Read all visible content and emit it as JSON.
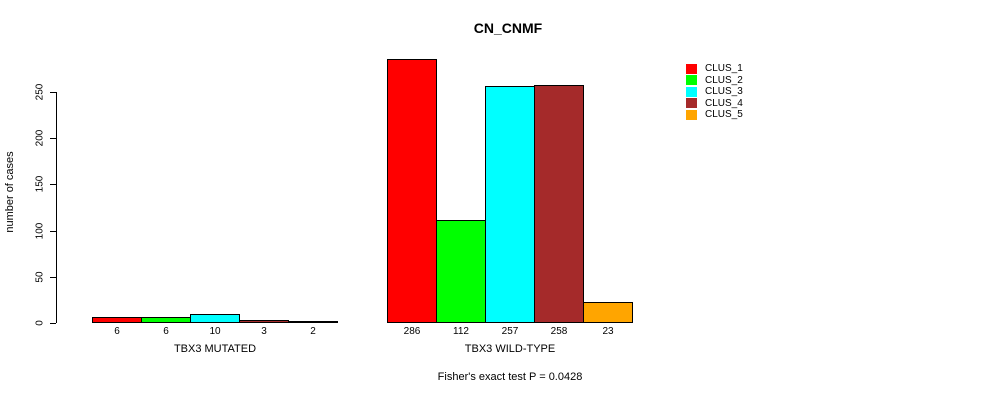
{
  "title": "CN_CNMF",
  "y_axis": {
    "label": "number of cases",
    "ticks": [
      0,
      50,
      100,
      150,
      200,
      250
    ]
  },
  "footer": "Fisher's exact test P = 0.0428",
  "legend": {
    "items": [
      {
        "label": "CLUS_1",
        "color": "#FF0000"
      },
      {
        "label": "CLUS_2",
        "color": "#00FF00"
      },
      {
        "label": "CLUS_3",
        "color": "#00FFFF"
      },
      {
        "label": "CLUS_4",
        "color": "#A52A2A"
      },
      {
        "label": "CLUS_5",
        "color": "#FFA500"
      }
    ]
  },
  "chart_data": {
    "type": "bar",
    "title": "CN_CNMF",
    "xlabel": "",
    "ylabel": "number of cases",
    "ylim": [
      0,
      290
    ],
    "yticks": [
      0,
      50,
      100,
      150,
      200,
      250
    ],
    "grid": false,
    "legend_position": "right",
    "legend_labels": [
      "CLUS_1",
      "CLUS_2",
      "CLUS_3",
      "CLUS_4",
      "CLUS_5"
    ],
    "series_colors": [
      "#FF0000",
      "#00FF00",
      "#00FFFF",
      "#A52A2A",
      "#FFA500"
    ],
    "groups": [
      {
        "label": "TBX3 MUTATED",
        "values": [
          6,
          6,
          10,
          3,
          2
        ]
      },
      {
        "label": "TBX3 WILD-TYPE",
        "values": [
          286,
          112,
          257,
          258,
          23
        ]
      }
    ],
    "bar_value_labels": [
      [
        "6",
        "6",
        "10",
        "3",
        "2"
      ],
      [
        "286",
        "112",
        "257",
        "258",
        "23"
      ]
    ],
    "annotation": "Fisher's exact test P = 0.0428"
  }
}
